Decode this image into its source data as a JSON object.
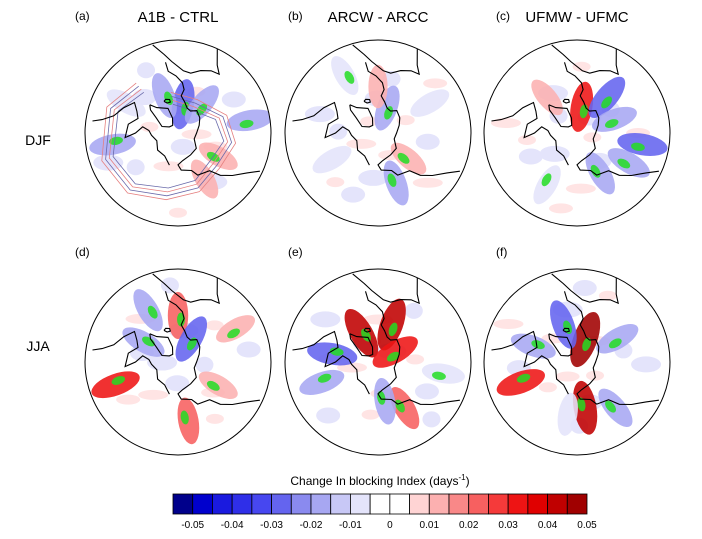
{
  "chart_data": {
    "type": "heatmap",
    "projection": "north polar stereographic",
    "rows": [
      "DJF",
      "JJA"
    ],
    "columns": [
      "A1B - CTRL",
      "ARCW - ARCC",
      "UFMW - UFMC"
    ],
    "panels": [
      {
        "letter": "(a)",
        "title": "A1B - CTRL",
        "season": "DJF",
        "contours": true,
        "patches": [
          {
            "lon": 10,
            "lat": 68,
            "value": -0.03
          },
          {
            "lon": 40,
            "lat": 62,
            "value": -0.02
          },
          {
            "lon": -20,
            "lat": 60,
            "value": -0.02
          },
          {
            "lon": 120,
            "lat": 55,
            "value": 0.01
          },
          {
            "lon": 150,
            "lat": 50,
            "value": 0.01
          },
          {
            "lon": -60,
            "lat": 45,
            "value": -0.01
          },
          {
            "lon": -100,
            "lat": 40,
            "value": -0.02
          },
          {
            "lon": 80,
            "lat": 35,
            "value": -0.02
          }
        ]
      },
      {
        "letter": "(b)",
        "title": "ARCW - ARCC",
        "season": "DJF",
        "contours": false,
        "patches": [
          {
            "lon": 20,
            "lat": 70,
            "value": -0.02
          },
          {
            "lon": 0,
            "lat": 55,
            "value": 0.01
          },
          {
            "lon": 160,
            "lat": 50,
            "value": -0.02
          },
          {
            "lon": 130,
            "lat": 60,
            "value": 0.01
          },
          {
            "lon": -120,
            "lat": 50,
            "value": -0.01
          },
          {
            "lon": 60,
            "lat": 45,
            "value": -0.01
          },
          {
            "lon": -30,
            "lat": 40,
            "value": -0.01
          }
        ]
      },
      {
        "letter": "(c)",
        "title": "UFMW - UFMC",
        "season": "DJF",
        "contours": false,
        "patches": [
          {
            "lon": 10,
            "lat": 70,
            "value": 0.03
          },
          {
            "lon": 40,
            "lat": 55,
            "value": -0.03
          },
          {
            "lon": 150,
            "lat": 55,
            "value": -0.02
          },
          {
            "lon": 120,
            "lat": 45,
            "value": -0.02
          },
          {
            "lon": -40,
            "lat": 55,
            "value": 0.01
          },
          {
            "lon": 70,
            "lat": 60,
            "value": -0.02
          },
          {
            "lon": -150,
            "lat": 45,
            "value": -0.01
          },
          {
            "lon": 100,
            "lat": 40,
            "value": -0.03
          }
        ]
      },
      {
        "letter": "(d)",
        "title": "",
        "season": "JJA",
        "contours": false,
        "patches": [
          {
            "lon": 0,
            "lat": 55,
            "value": 0.02
          },
          {
            "lon": 30,
            "lat": 70,
            "value": -0.03
          },
          {
            "lon": -60,
            "lat": 60,
            "value": -0.02
          },
          {
            "lon": 120,
            "lat": 55,
            "value": 0.01
          },
          {
            "lon": 170,
            "lat": 45,
            "value": 0.02
          },
          {
            "lon": -110,
            "lat": 40,
            "value": 0.03
          },
          {
            "lon": 60,
            "lat": 40,
            "value": 0.01
          },
          {
            "lon": -30,
            "lat": 45,
            "value": -0.02
          }
        ]
      },
      {
        "letter": "(e)",
        "title": "",
        "season": "JJA",
        "contours": false,
        "patches": [
          {
            "lon": 20,
            "lat": 60,
            "value": 0.04
          },
          {
            "lon": -30,
            "lat": 65,
            "value": 0.04
          },
          {
            "lon": 60,
            "lat": 75,
            "value": 0.03
          },
          {
            "lon": -80,
            "lat": 55,
            "value": -0.03
          },
          {
            "lon": -110,
            "lat": 45,
            "value": -0.02
          },
          {
            "lon": 150,
            "lat": 50,
            "value": 0.02
          },
          {
            "lon": 100,
            "lat": 40,
            "value": -0.01
          },
          {
            "lon": 170,
            "lat": 60,
            "value": -0.02
          }
        ]
      },
      {
        "letter": "(f)",
        "title": "",
        "season": "JJA",
        "contours": false,
        "patches": [
          {
            "lon": 20,
            "lat": 72,
            "value": 0.05
          },
          {
            "lon": 60,
            "lat": 55,
            "value": -0.02
          },
          {
            "lon": -20,
            "lat": 60,
            "value": -0.03
          },
          {
            "lon": -70,
            "lat": 55,
            "value": -0.02
          },
          {
            "lon": -110,
            "lat": 45,
            "value": 0.03
          },
          {
            "lon": 170,
            "lat": 55,
            "value": 0.04
          },
          {
            "lon": 140,
            "lat": 45,
            "value": -0.02
          },
          {
            "lon": -170,
            "lat": 50,
            "value": -0.01
          }
        ]
      }
    ],
    "colorbar": {
      "label": "Change In blocking Index (days",
      "label_exponent": "-1",
      "label_close": ")",
      "range": [
        -0.055,
        0.055
      ],
      "levels": [
        -0.05,
        -0.045,
        -0.04,
        -0.035,
        -0.03,
        -0.025,
        -0.02,
        -0.015,
        -0.01,
        -0.005,
        0,
        0.005,
        0.01,
        0.015,
        0.02,
        0.025,
        0.03,
        0.035,
        0.04,
        0.045,
        0.05
      ],
      "tick_labels": [
        "-0.05",
        "-0.04",
        "-0.03",
        "-0.02",
        "-0.01",
        "0",
        "0.01",
        "0.02",
        "0.03",
        "0.04",
        "0.05"
      ],
      "colors": [
        "#00008b",
        "#0000cd",
        "#1a1adf",
        "#2f2fe8",
        "#4747f0",
        "#6464ef",
        "#8a8aef",
        "#a7a7f2",
        "#c8c8f6",
        "#e4e4fb",
        "#ffffff",
        "#ffffff",
        "#ffd4d4",
        "#fcb0b0",
        "#f98888",
        "#f76060",
        "#f53a3a",
        "#ee1414",
        "#e00000",
        "#c00000",
        "#a00000"
      ]
    },
    "significance_color": "#22dd22",
    "land_outline_color": "#000000"
  }
}
